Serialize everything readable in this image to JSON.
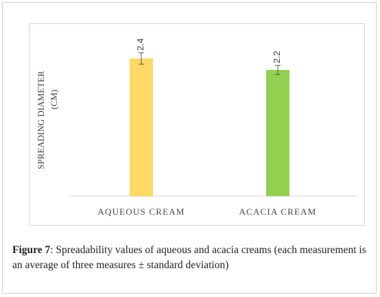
{
  "chart_data": {
    "type": "bar",
    "categories": [
      "AQUEOUS CREAM",
      "ACACIA CREAM"
    ],
    "values": [
      2.4,
      2.2
    ],
    "error": [
      0.1,
      0.08
    ],
    "data_labels": [
      "2.4",
      "2.2"
    ],
    "colors": [
      "#ffd966",
      "#92d050"
    ],
    "title": "",
    "xlabel": "",
    "ylabel_lines": [
      "SPREADING DIAMETER",
      "(CM)"
    ],
    "ylim": [
      0,
      3.0
    ],
    "grid": false,
    "legend": "none"
  },
  "caption": {
    "label": "Figure 7",
    "text": ": Spreadability values of aqueous and acacia creams (each measurement is an average of three measures ± standard deviation)"
  }
}
